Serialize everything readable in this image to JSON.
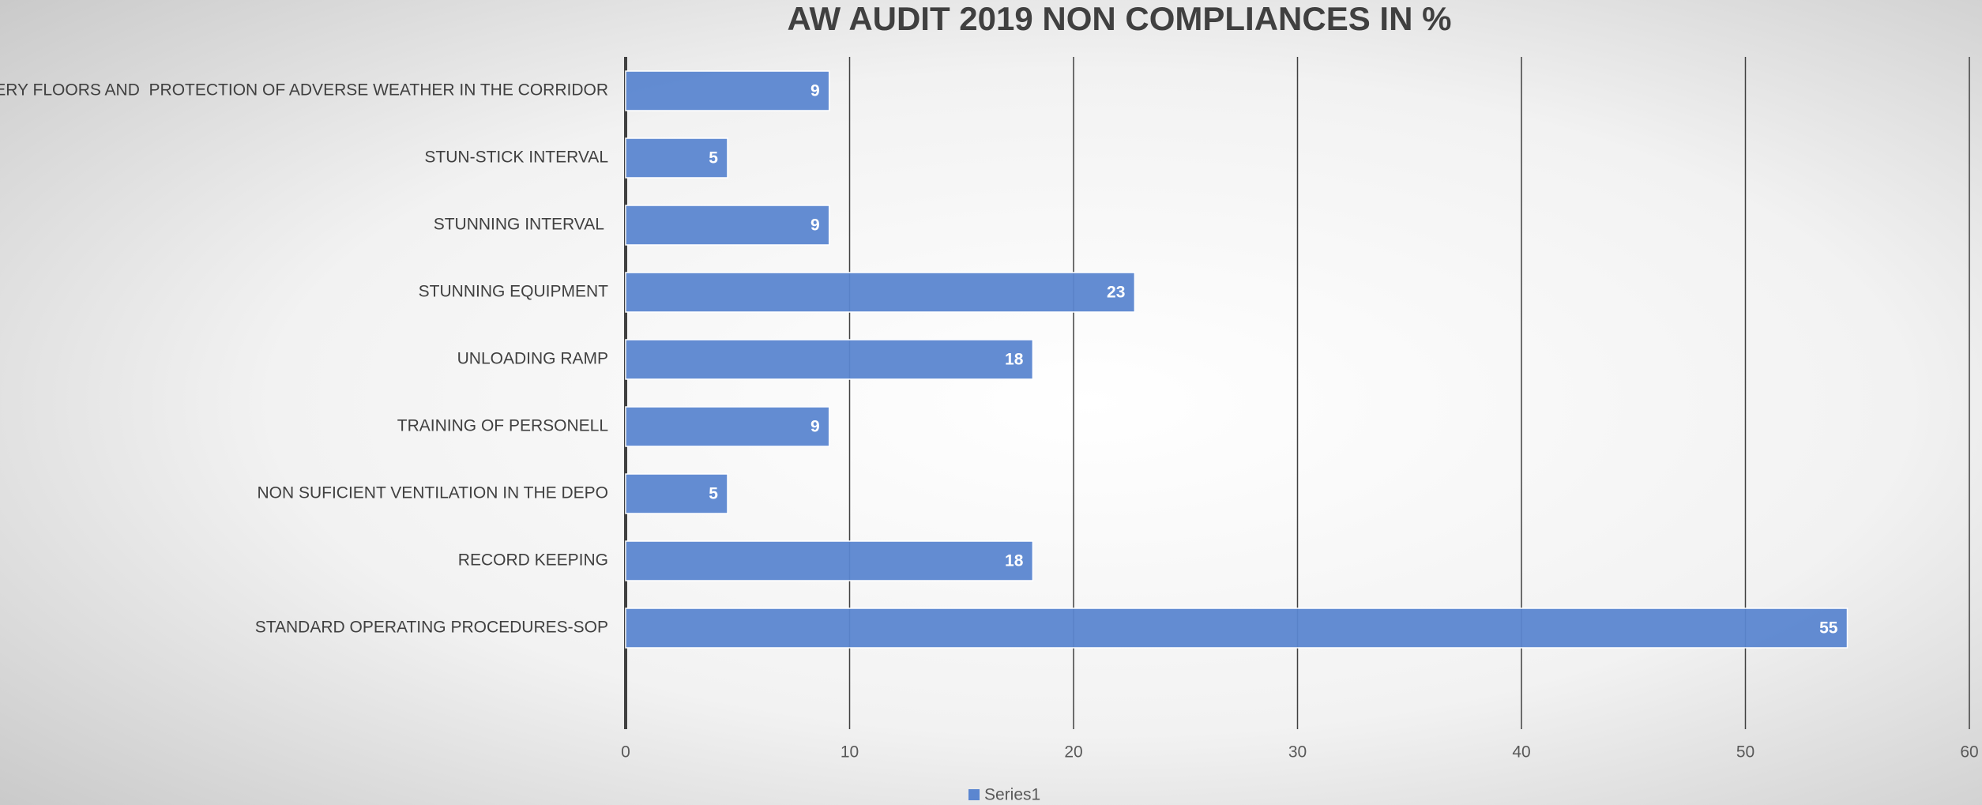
{
  "chart_data": {
    "type": "hbar",
    "title": "AW AUDIT 2019 NON COMPLIANCES IN %",
    "categories": [
      "SLIPERY FLOORS AND  PROTECTION OF ADVERSE WEATHER IN THE CORRIDOR",
      "STUN-STICK INTERVAL",
      "STUNNING INTERVAL ",
      "STUNNING EQUIPMENT",
      "UNLOADING RAMP",
      "TRAINING OF PERSONELL",
      "NON SUFICIENT VENTILATION IN THE DEPO",
      "RECORD KEEPING",
      "STANDARD OPERATING PROCEDURES-SOP"
    ],
    "series": [
      {
        "name": "Series1",
        "color": "#5b86d0",
        "values": [
          9.09,
          4.55,
          9.09,
          22.73,
          18.18,
          9.09,
          4.55,
          18.18,
          54.55
        ],
        "value_labels": [
          "9",
          "5",
          "9",
          "23",
          "18",
          "9",
          "5",
          "18",
          "55"
        ]
      }
    ],
    "xlim": [
      0,
      60
    ],
    "xticks": [
      0,
      10,
      20,
      30,
      40,
      50,
      60
    ],
    "grid": true,
    "legend": "bottom"
  }
}
